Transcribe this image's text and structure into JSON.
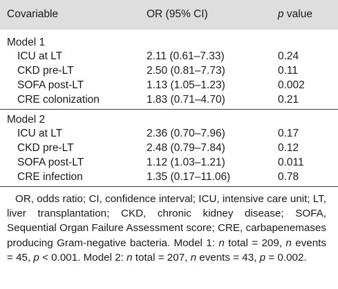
{
  "table": {
    "headers": {
      "covariable": "Covariable",
      "or_ci": "OR (95% CI)",
      "p_italic": "p",
      "p_rest": " value"
    },
    "groups": [
      {
        "title": "Model 1",
        "rows": [
          {
            "label": "ICU at LT",
            "or": "2.11 (0.61–7.33)",
            "p": "0.24"
          },
          {
            "label": "CKD pre-LT",
            "or": "2.50 (0.81–7.73)",
            "p": "0.11"
          },
          {
            "label": "SOFA post-LT",
            "or": "1.13 (1.05–1.23)",
            "p": "0.002"
          },
          {
            "label": "CRE colonization",
            "or": "1.83 (0.71–4.70)",
            "p": "0.21"
          }
        ]
      },
      {
        "title": "Model 2",
        "rows": [
          {
            "label": "ICU at LT",
            "or": "2.36 (0.70–7.96)",
            "p": "0.17"
          },
          {
            "label": "CKD pre-LT",
            "or": "2.48 (0.79–7.84)",
            "p": "0.12"
          },
          {
            "label": "SOFA post-LT",
            "or": "1.12 (1.03–1.21)",
            "p": "0.011"
          },
          {
            "label": "CRE infection",
            "or": "1.35 (0.17–11.06)",
            "p": "0.78"
          }
        ]
      }
    ]
  },
  "footnote": {
    "abbrev": "OR, odds ratio; CI, confidence interval; ICU, intensive care unit; LT, liver transplantation; CKD, chronic kidney disease; SOFA, Sequential Organ Failure Assessment score; CRE, car­bapenemases producing Gram-negative bacteria. Model 1: ",
    "n1": "n",
    "t1": " total = 209, ",
    "n2": "n",
    "t2": " events = 45, ",
    "p1": "p",
    "t3": " < 0.001. Model 2: ",
    "n3": "n",
    "t4": " total = 207, ",
    "n4": "n",
    "t5": " events = 43, ",
    "p2": "p",
    "t6": " = 0.002."
  }
}
